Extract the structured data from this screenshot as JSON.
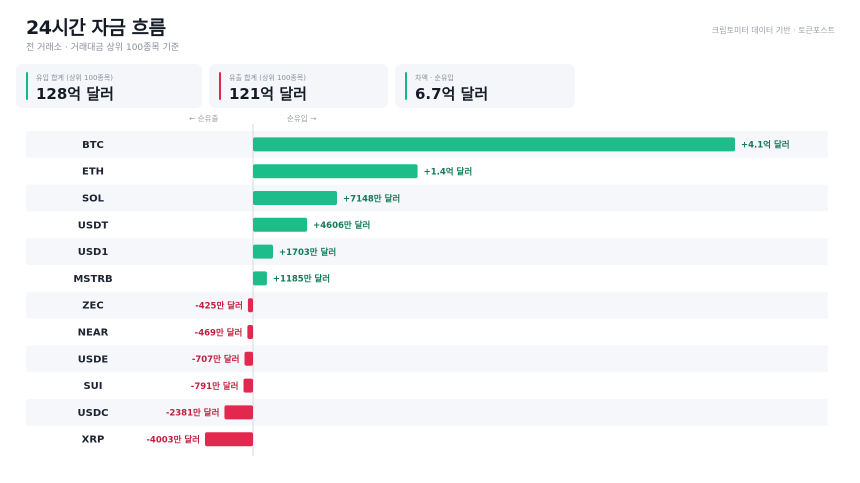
{
  "header": {
    "title": "24시간 자금 흐름",
    "subtitle": "전 거래소 · 거래대금 상위 100종목 기준",
    "source": "크립토미터 데이터 기반 · 토큰포스트"
  },
  "summary": [
    {
      "label": "유입 합계 (상위 100종목)",
      "value": "128억 달러",
      "color": "#16b887"
    },
    {
      "label": "유출 합계 (상위 100종목)",
      "value": "121억 달러",
      "color": "#e0284f"
    },
    {
      "label": "차액 · 순유입",
      "value": "6.7억 달러",
      "color": "#16b887"
    }
  ],
  "axis_hints": {
    "left": "← 순유출",
    "right": "순유입 →"
  },
  "colors": {
    "positive": "#1dbd89",
    "negative": "#e2284f",
    "positive_text": "#127a55",
    "negative_text": "#c0203f",
    "row_stripe": "#f5f7fa"
  },
  "chart_data": {
    "type": "bar",
    "orientation": "horizontal",
    "unit": "만 달러",
    "categories": [
      "BTC",
      "ETH",
      "SOL",
      "USDT",
      "USD1",
      "MSTRB",
      "ZEC",
      "NEAR",
      "USDE",
      "SUI",
      "USDC",
      "XRP"
    ],
    "values": [
      41000,
      14000,
      7148,
      4606,
      1703,
      1185,
      -425,
      -469,
      -707,
      -791,
      -2381,
      -4003
    ],
    "labels": [
      "+4.1억 달러",
      "+1.4억 달러",
      "+7148만 달러",
      "+4606만 달러",
      "+1703만 달러",
      "+1185만 달러",
      "-425만 달러",
      "-469만 달러",
      "-707만 달러",
      "-791만 달러",
      "-2381만 달러",
      "-4003만 달러"
    ]
  }
}
